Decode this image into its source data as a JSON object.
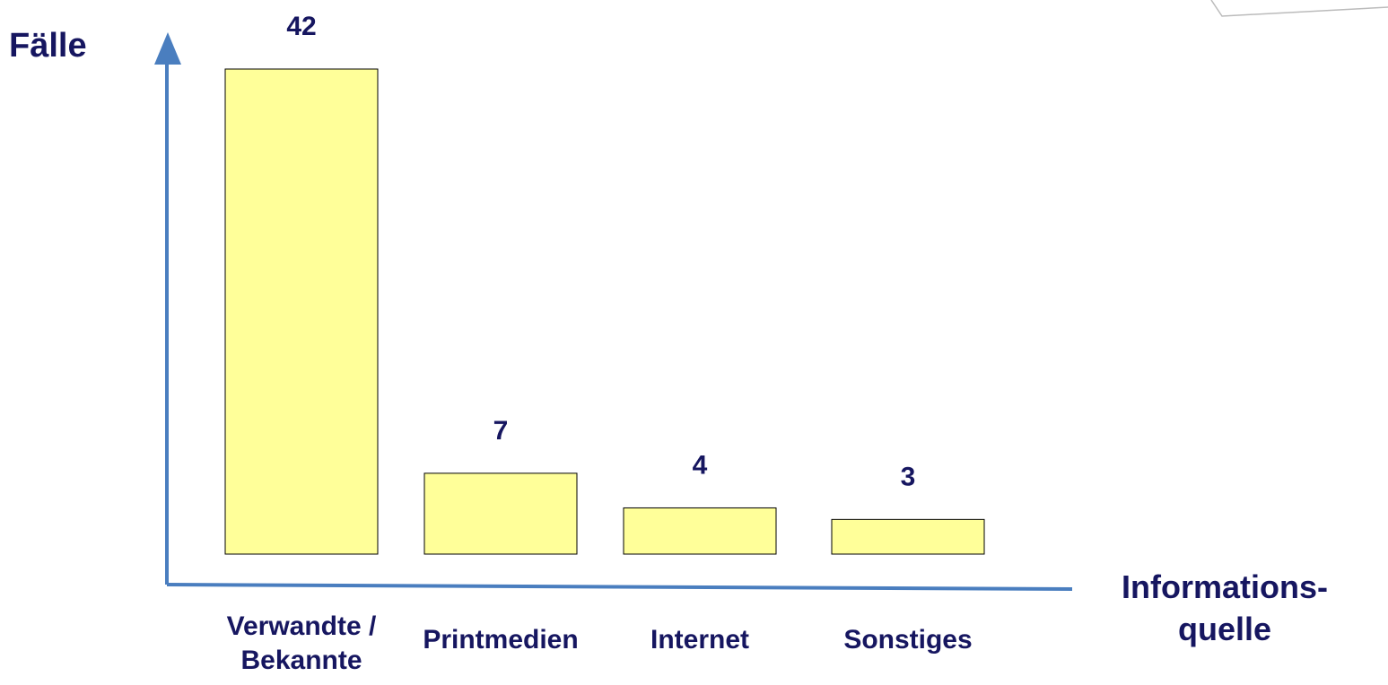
{
  "chart_data": {
    "type": "bar",
    "y_label": "Fälle",
    "x_label": "Informations-quelle",
    "categories": [
      "Verwandte / Bekannte",
      "Printmedien",
      "Internet",
      "Sonstiges"
    ],
    "values": [
      42,
      7,
      4,
      3
    ],
    "color": "#ffff99",
    "ylim": [
      0,
      42
    ]
  }
}
